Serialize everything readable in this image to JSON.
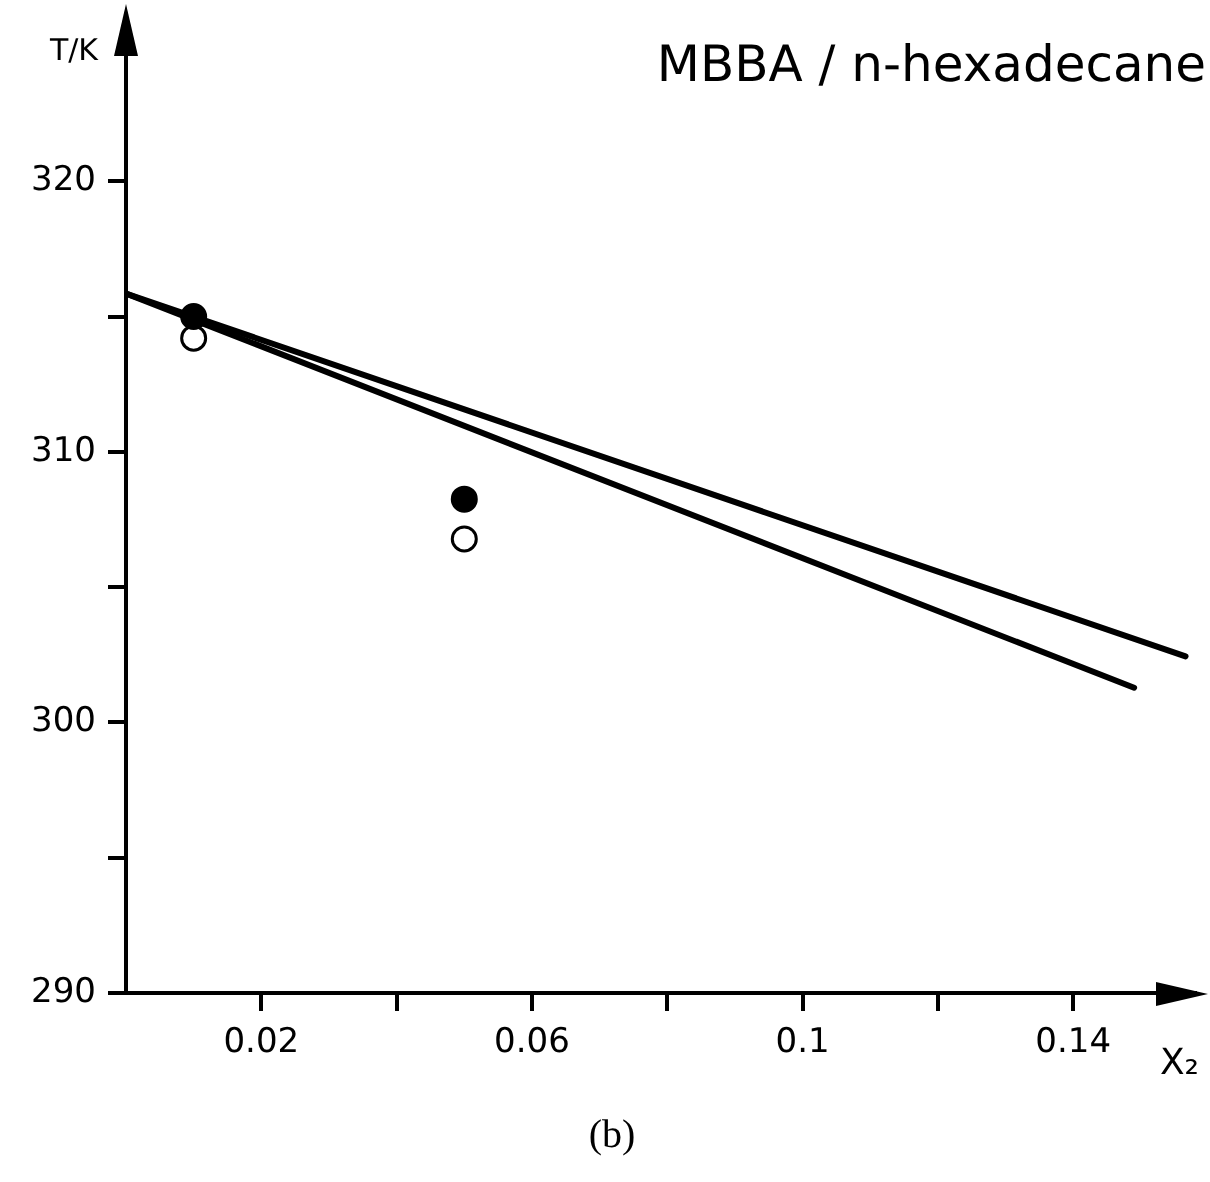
{
  "chart_data": {
    "type": "line",
    "title": "MBBA / n-hexadecane",
    "xlabel": "X₂",
    "ylabel": "T/K",
    "annotations": [
      "(b)"
    ],
    "xlim": [
      0,
      0.158
    ],
    "ylim": [
      290,
      325.5
    ],
    "xticks": [
      0.02,
      {
        "value": 0.04,
        "label": null
      },
      0.06,
      {
        "value": 0.08,
        "label": null
      },
      0.1,
      {
        "value": 0.12,
        "label": null
      },
      0.14
    ],
    "yticks": [
      290,
      {
        "value": 295,
        "label": null
      },
      300,
      {
        "value": 305,
        "label": null
      },
      310,
      {
        "value": 315,
        "label": null
      },
      320
    ],
    "grid": false,
    "legend": false,
    "marker": "none",
    "line_style": "solid",
    "series": [
      {
        "color": "#000000",
        "x": [
          0,
          0.1566
        ],
        "values": [
          315.85,
          302.44
        ]
      },
      {
        "color": "#000000",
        "x": [
          0,
          0.149
        ],
        "values": [
          315.85,
          301.28
        ]
      },
      {
        "type": "scatter",
        "marker": "circle",
        "color": "#000000",
        "x": [
          0.01,
          0.05
        ],
        "values": [
          315.0,
          308.25
        ]
      },
      {
        "type": "scatter",
        "marker": "circle",
        "color": "#ffffff",
        "x": [
          0.01,
          0.05
        ],
        "values": [
          314.2,
          306.78
        ]
      }
    ]
  }
}
